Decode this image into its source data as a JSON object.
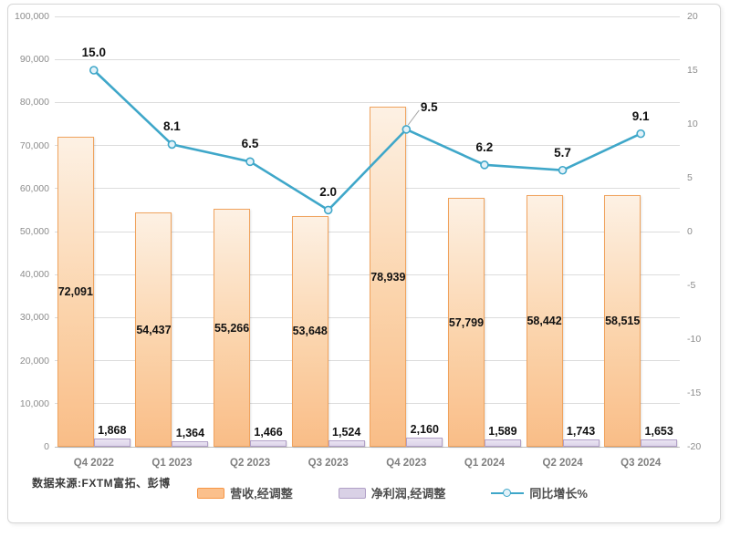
{
  "source_note": "数据来源:FXTM富拓、彭博",
  "colors": {
    "revenue_bar_border": "#f0a35e",
    "revenue_bar_fill_top": "#fdf1e4",
    "revenue_bar_fill_bottom": "#f9bd87",
    "profit_bar_border": "#b1a0c7",
    "profit_bar_fill": "#ddd4ea",
    "growth_line": "#3fa7c9",
    "growth_marker_fill": "#e3f2f9",
    "gridline": "#dcdcdc",
    "axis_text": "#8c8c8c",
    "category_text": "#7f7f7f",
    "data_label_text": "#111111"
  },
  "chart_data": {
    "type": "combo",
    "categories": [
      "Q4 2022",
      "Q1 2023",
      "Q2 2023",
      "Q3 2023",
      "Q4 2023",
      "Q1 2024",
      "Q2 2024",
      "Q3 2024"
    ],
    "series": [
      {
        "name": "营收,经调整",
        "type": "bar",
        "axis": "left",
        "values": [
          72091,
          54437,
          55266,
          53648,
          78939,
          57799,
          58442,
          58515
        ],
        "labels": [
          "72,091",
          "54,437",
          "55,266",
          "53,648",
          "78,939",
          "57,799",
          "58,442",
          "58,515"
        ]
      },
      {
        "name": "净利润,经调整",
        "type": "bar",
        "axis": "left",
        "values": [
          1868,
          1364,
          1466,
          1524,
          2160,
          1589,
          1743,
          1653
        ],
        "labels": [
          "1,868",
          "1,364",
          "1,466",
          "1,524",
          "2,160",
          "1,589",
          "1,743",
          "1,653"
        ]
      },
      {
        "name": "同比增长%",
        "type": "line",
        "axis": "right",
        "values": [
          15.0,
          8.1,
          6.5,
          2.0,
          9.5,
          6.2,
          5.7,
          9.1
        ],
        "labels": [
          "15.0",
          "8.1",
          "6.5",
          "2.0",
          "9.5",
          "6.2",
          "5.7",
          "9.1"
        ],
        "callouts": {
          "4": {
            "dx": 25,
            "dy": -24,
            "leader": true
          }
        }
      }
    ],
    "axes": {
      "left": {
        "min": 0,
        "max": 100000,
        "step": 10000,
        "tick_labels": [
          "0",
          "10,000",
          "20,000",
          "30,000",
          "40,000",
          "50,000",
          "60,000",
          "70,000",
          "80,000",
          "90,000",
          "100,000"
        ]
      },
      "right": {
        "min": -20,
        "max": 20,
        "step": 5,
        "tick_labels": [
          "-20",
          "-15",
          "-10",
          "-5",
          "0",
          "5",
          "10",
          "15",
          "20"
        ]
      }
    },
    "grid": true,
    "legend_position": "bottom"
  }
}
